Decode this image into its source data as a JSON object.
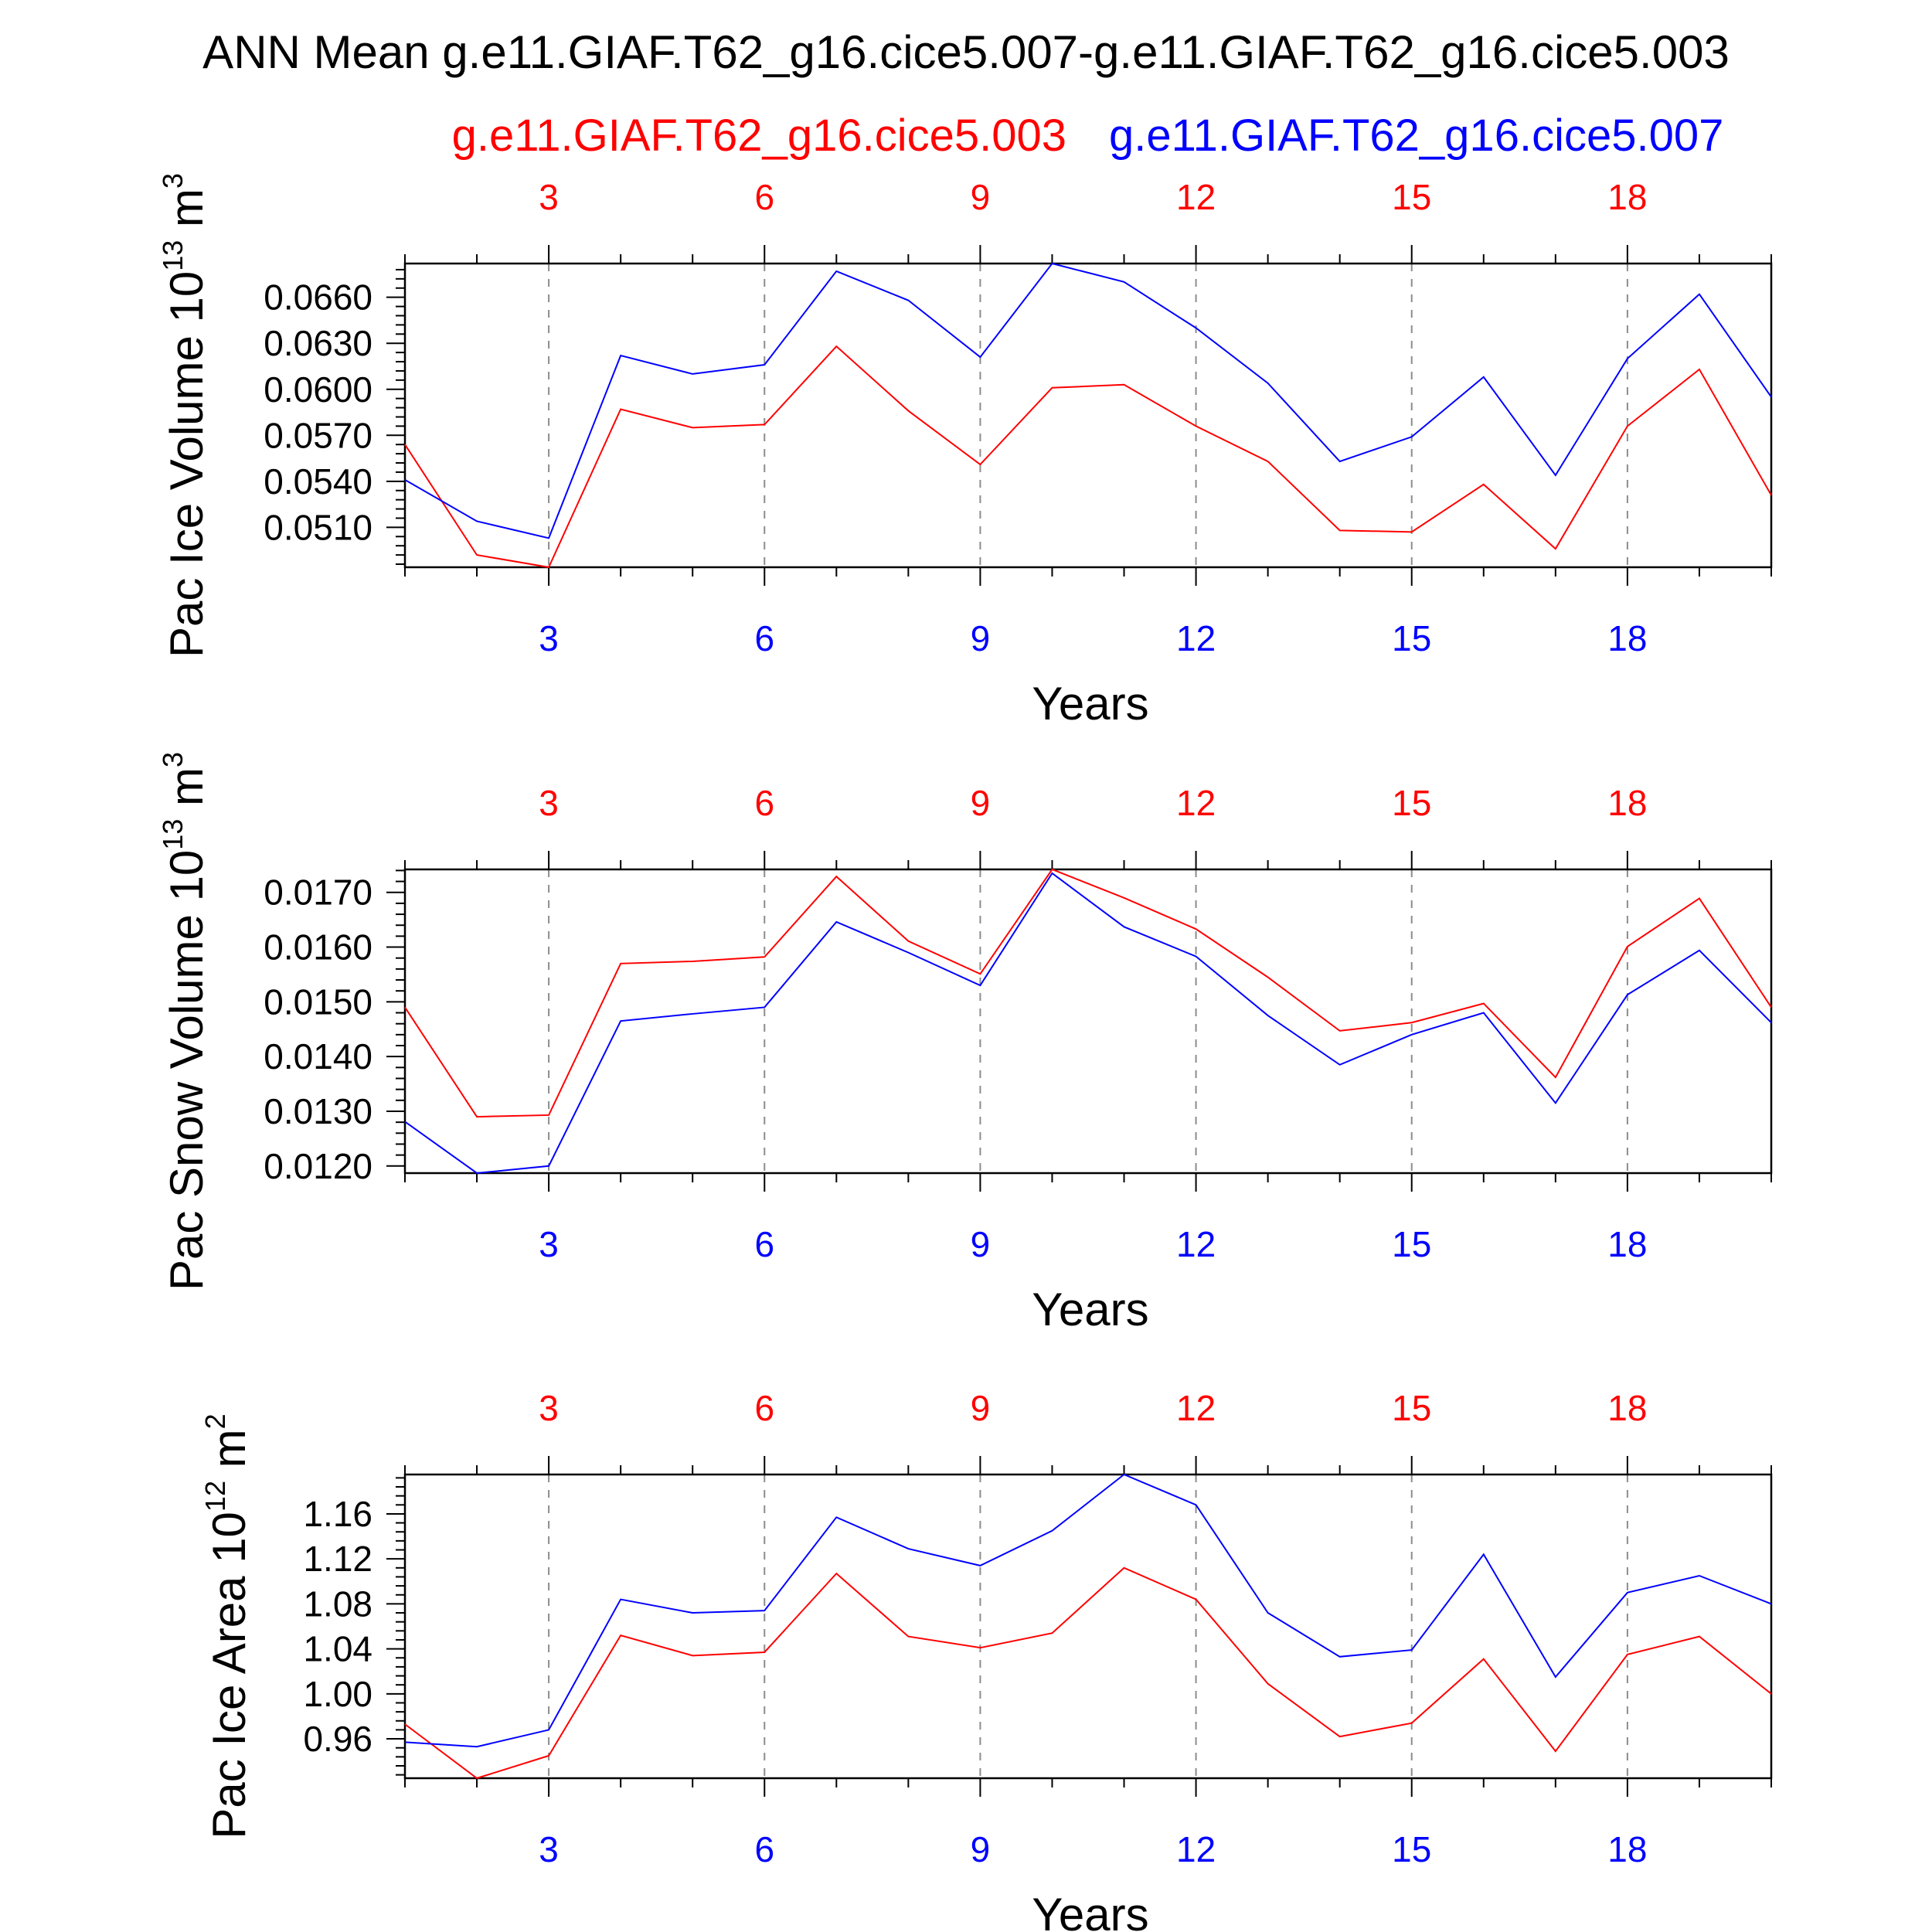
{
  "title": "ANN Mean g.e11.GIAF.T62_g16.cice5.007-g.e11.GIAF.T62_g16.cice5.003",
  "legend": {
    "case_a": "g.e11.GIAF.T62_g16.cice5.003",
    "case_b": "g.e11.GIAF.T62_g16.cice5.007"
  },
  "colors": {
    "case_a": "#ff0000",
    "case_b": "#0000ff",
    "axis": "#000000",
    "grid": "#8c8c8c"
  },
  "chart_data": [
    {
      "type": "line",
      "title": "",
      "xlabel": "Years",
      "ylabel": "Pac Ice Volume 10",
      "ylabel_exp": "13",
      "ylabel_unit": " m",
      "ylabel_unit_exp": "3",
      "x": [
        1,
        2,
        3,
        4,
        5,
        6,
        7,
        8,
        9,
        10,
        11,
        12,
        13,
        14,
        15,
        16,
        17,
        18,
        19,
        20
      ],
      "xlim": [
        1,
        20
      ],
      "ylim": [
        0.0484,
        0.0682
      ],
      "yticks": [
        "0.0510",
        "0.0540",
        "0.0570",
        "0.0600",
        "0.0630",
        "0.0660"
      ],
      "ytick_values": [
        0.051,
        0.054,
        0.057,
        0.06,
        0.063,
        0.066
      ],
      "xticks": [
        "3",
        "6",
        "9",
        "12",
        "15",
        "18"
      ],
      "xtick_values": [
        3,
        6,
        9,
        12,
        15,
        18
      ],
      "grid": "vertical-dashed",
      "series": [
        {
          "name": "g.e11.GIAF.T62_g16.cice5.003",
          "color": "#ff0000",
          "values": [
            0.0564,
            0.0492,
            0.0484,
            0.0587,
            0.0575,
            0.0577,
            0.0628,
            0.0586,
            0.0551,
            0.0601,
            0.0603,
            0.0576,
            0.0553,
            0.0508,
            0.0507,
            0.0538,
            0.0496,
            0.0576,
            0.0613,
            0.0531
          ]
        },
        {
          "name": "g.e11.GIAF.T62_g16.cice5.007",
          "color": "#0000ff",
          "values": [
            0.0541,
            0.0514,
            0.0503,
            0.0622,
            0.061,
            0.0616,
            0.0677,
            0.0658,
            0.0621,
            0.0682,
            0.067,
            0.064,
            0.0604,
            0.0553,
            0.0569,
            0.0608,
            0.0544,
            0.062,
            0.0662,
            0.0595
          ]
        }
      ]
    },
    {
      "type": "line",
      "title": "",
      "xlabel": "Years",
      "ylabel": "Pac Snow Volume 10",
      "ylabel_exp": "13",
      "ylabel_unit": " m",
      "ylabel_unit_exp": "3",
      "x": [
        1,
        2,
        3,
        4,
        5,
        6,
        7,
        8,
        9,
        10,
        11,
        12,
        13,
        14,
        15,
        16,
        17,
        18,
        19,
        20
      ],
      "xlim": [
        1,
        20
      ],
      "ylim": [
        0.01187,
        0.01742
      ],
      "yticks": [
        "0.0120",
        "0.0130",
        "0.0140",
        "0.0150",
        "0.0160",
        "0.0170"
      ],
      "ytick_values": [
        0.012,
        0.013,
        0.014,
        0.015,
        0.016,
        0.017
      ],
      "xticks": [
        "3",
        "6",
        "9",
        "12",
        "15",
        "18"
      ],
      "xtick_values": [
        3,
        6,
        9,
        12,
        15,
        18
      ],
      "grid": "vertical-dashed",
      "series": [
        {
          "name": "g.e11.GIAF.T62_g16.cice5.003",
          "color": "#ff0000",
          "values": [
            0.0149,
            0.0129,
            0.01293,
            0.0157,
            0.01574,
            0.01582,
            0.01729,
            0.01611,
            0.01551,
            0.01742,
            0.0169,
            0.01633,
            0.01545,
            0.01447,
            0.01462,
            0.01497,
            0.01362,
            0.01601,
            0.01689,
            0.0149
          ]
        },
        {
          "name": "g.e11.GIAF.T62_g16.cice5.007",
          "color": "#0000ff",
          "values": [
            0.01281,
            0.01187,
            0.012,
            0.01465,
            0.01478,
            0.0149,
            0.01646,
            0.0159,
            0.0153,
            0.01735,
            0.01637,
            0.01583,
            0.01475,
            0.01385,
            0.0144,
            0.0148,
            0.01315,
            0.01513,
            0.01594,
            0.01462
          ]
        }
      ]
    },
    {
      "type": "line",
      "title": "",
      "xlabel": "Years",
      "ylabel": "Pac Ice Area 10",
      "ylabel_exp": "12",
      "ylabel_unit": " m",
      "ylabel_unit_exp": "2",
      "x": [
        1,
        2,
        3,
        4,
        5,
        6,
        7,
        8,
        9,
        10,
        11,
        12,
        13,
        14,
        15,
        16,
        17,
        18,
        19,
        20
      ],
      "xlim": [
        1,
        20
      ],
      "ylim": [
        0.925,
        1.195
      ],
      "yticks": [
        "0.96",
        "1.00",
        "1.04",
        "1.08",
        "1.12",
        "1.16"
      ],
      "ytick_values": [
        0.96,
        1.0,
        1.04,
        1.08,
        1.12,
        1.16
      ],
      "xticks": [
        "3",
        "6",
        "9",
        "12",
        "15",
        "18"
      ],
      "xtick_values": [
        3,
        6,
        9,
        12,
        15,
        18
      ],
      "grid": "vertical-dashed",
      "series": [
        {
          "name": "g.e11.GIAF.T62_g16.cice5.003",
          "color": "#ff0000",
          "values": [
            0.973,
            0.925,
            0.945,
            1.052,
            1.034,
            1.037,
            1.107,
            1.051,
            1.041,
            1.054,
            1.112,
            1.084,
            1.009,
            0.962,
            0.974,
            1.031,
            0.949,
            1.035,
            1.051,
            1.0
          ]
        },
        {
          "name": "g.e11.GIAF.T62_g16.cice5.007",
          "color": "#0000ff",
          "values": [
            0.957,
            0.953,
            0.968,
            1.084,
            1.072,
            1.074,
            1.157,
            1.129,
            1.114,
            1.145,
            1.195,
            1.168,
            1.072,
            1.033,
            1.039,
            1.124,
            1.015,
            1.09,
            1.105,
            1.08
          ]
        }
      ]
    }
  ]
}
